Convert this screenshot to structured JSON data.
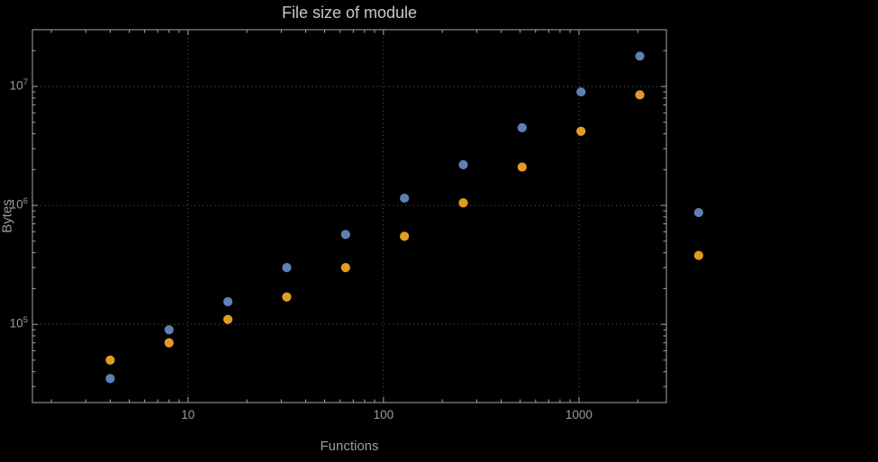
{
  "chart_data": {
    "type": "scatter",
    "title": "File size of module",
    "xlabel": "Functions",
    "ylabel": "Bytes",
    "x_scale": "log",
    "y_scale": "log",
    "xlim": [
      1.6,
      2800
    ],
    "ylim": [
      22000,
      30000000
    ],
    "x_ticks": [
      10,
      100,
      1000
    ],
    "y_tick_exponents": [
      5,
      6,
      7
    ],
    "grid": true,
    "legend": "none",
    "series": [
      {
        "name": "blue-series",
        "color": "#5E81B5",
        "points": [
          [
            4,
            35000
          ],
          [
            8,
            90000
          ],
          [
            16,
            155000
          ],
          [
            32,
            300000
          ],
          [
            64,
            570000
          ],
          [
            128,
            1150000
          ],
          [
            256,
            2200000
          ],
          [
            512,
            4500000
          ],
          [
            1024,
            9000000
          ],
          [
            2048,
            18000000
          ],
          [
            4096,
            870000
          ]
        ]
      },
      {
        "name": "orange-series",
        "color": "#E19C24",
        "points": [
          [
            4,
            50000
          ],
          [
            8,
            70000
          ],
          [
            16,
            110000
          ],
          [
            32,
            170000
          ],
          [
            64,
            300000
          ],
          [
            128,
            550000
          ],
          [
            256,
            1050000
          ],
          [
            512,
            2100000
          ],
          [
            1024,
            4200000
          ],
          [
            2048,
            8500000
          ],
          [
            4096,
            380000
          ]
        ]
      }
    ]
  }
}
